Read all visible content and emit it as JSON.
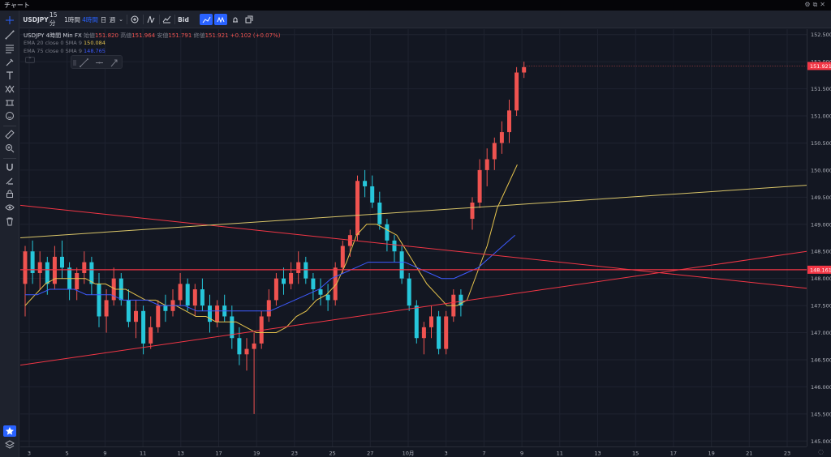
{
  "window": {
    "title": "チャート",
    "controls": [
      "⚙",
      "⧉",
      "✕"
    ]
  },
  "toolbar": {
    "symbol": "USDJPY",
    "timeframes": [
      "15分",
      "1時間",
      "4時間",
      "日",
      "週"
    ],
    "active_timeframe": "4時間",
    "price_side": "Bid"
  },
  "legend": {
    "line1": {
      "symbol": "USDJPY",
      "interval": "4時間",
      "source": "Min FX",
      "open_label": "始値",
      "open": "151.820",
      "high_label": "高値",
      "high": "151.964",
      "low_label": "安値",
      "low": "151.791",
      "close_label": "終値",
      "close": "151.921",
      "change": "+0.102 (+0.07%)"
    },
    "ema20": {
      "label": "EMA 20 close 0 SMA 9",
      "value": "150.084",
      "color": "#e5c34d"
    },
    "ema75": {
      "label": "EMA 75 close 0 SMA 9",
      "value": "148.765",
      "color": "#3d5afe"
    }
  },
  "colors": {
    "up": "#ef5350",
    "down": "#26c6da",
    "trend": "#f23645",
    "trend_yellow": "#d9c569",
    "bg": "#131722"
  },
  "price_axis": {
    "labels": [
      "152.500",
      "152.000",
      "151.500",
      "151.000",
      "150.500",
      "150.000",
      "149.500",
      "149.000",
      "148.500",
      "148.000",
      "147.500",
      "147.000",
      "146.500",
      "146.000",
      "145.500",
      "145.000"
    ],
    "current_price": "151.921",
    "horizontal_level": "148.161"
  },
  "time_axis": {
    "labels": [
      "3",
      "5",
      "9",
      "11",
      "13",
      "17",
      "19",
      "23",
      "25",
      "27",
      "10月",
      "3",
      "7",
      "9",
      "11",
      "13",
      "15",
      "17",
      "19",
      "21",
      "23"
    ]
  },
  "chart_data": {
    "type": "candlestick",
    "ylim": [
      144.9,
      152.6
    ],
    "candles": [
      [
        147.9,
        148.6,
        147.3,
        148.5
      ],
      [
        148.5,
        148.7,
        147.9,
        148.1
      ],
      [
        148.1,
        148.5,
        147.8,
        148.3
      ],
      [
        148.3,
        148.4,
        147.7,
        147.9
      ],
      [
        147.9,
        148.6,
        147.8,
        148.4
      ],
      [
        148.4,
        148.7,
        148.0,
        148.2
      ],
      [
        148.2,
        148.3,
        147.6,
        147.8
      ],
      [
        147.8,
        148.2,
        147.6,
        148.1
      ],
      [
        148.1,
        148.5,
        147.9,
        148.3
      ],
      [
        148.3,
        148.4,
        147.7,
        147.9
      ],
      [
        147.9,
        148.1,
        147.1,
        147.3
      ],
      [
        147.3,
        147.8,
        147.0,
        147.6
      ],
      [
        147.6,
        148.2,
        147.5,
        148.0
      ],
      [
        148.0,
        148.1,
        147.5,
        147.6
      ],
      [
        147.6,
        147.8,
        147.1,
        147.2
      ],
      [
        147.2,
        147.6,
        146.9,
        147.4
      ],
      [
        147.4,
        147.5,
        146.6,
        146.8
      ],
      [
        146.8,
        147.3,
        146.7,
        147.1
      ],
      [
        147.1,
        147.6,
        147.0,
        147.5
      ],
      [
        147.5,
        147.7,
        147.2,
        147.4
      ],
      [
        147.4,
        147.8,
        147.3,
        147.6
      ],
      [
        147.6,
        148.1,
        147.5,
        147.9
      ],
      [
        147.9,
        148.0,
        147.4,
        147.5
      ],
      [
        147.5,
        147.9,
        147.3,
        147.8
      ],
      [
        147.8,
        148.0,
        147.4,
        147.5
      ],
      [
        147.5,
        147.7,
        147.0,
        147.2
      ],
      [
        147.2,
        147.6,
        147.1,
        147.5
      ],
      [
        147.5,
        147.7,
        147.2,
        147.3
      ],
      [
        147.3,
        147.5,
        146.7,
        146.9
      ],
      [
        146.9,
        147.1,
        146.4,
        146.6
      ],
      [
        146.6,
        146.9,
        146.3,
        146.7
      ],
      [
        146.7,
        147.0,
        145.5,
        146.8
      ],
      [
        146.8,
        147.4,
        146.7,
        147.3
      ],
      [
        147.3,
        147.8,
        147.2,
        147.6
      ],
      [
        147.6,
        148.1,
        147.5,
        148.0
      ],
      [
        148.0,
        148.2,
        147.7,
        147.9
      ],
      [
        147.9,
        148.3,
        147.8,
        148.1
      ],
      [
        148.1,
        148.5,
        147.9,
        148.3
      ],
      [
        148.3,
        148.4,
        147.9,
        148.0
      ],
      [
        148.0,
        148.1,
        147.6,
        147.8
      ],
      [
        147.8,
        148.0,
        147.5,
        147.7
      ],
      [
        147.7,
        147.9,
        147.4,
        147.6
      ],
      [
        147.6,
        148.3,
        147.5,
        148.2
      ],
      [
        148.2,
        148.7,
        148.1,
        148.6
      ],
      [
        148.6,
        148.9,
        148.4,
        148.8
      ],
      [
        148.8,
        149.9,
        148.7,
        149.8
      ],
      [
        149.8,
        150.0,
        149.5,
        149.7
      ],
      [
        149.7,
        149.9,
        149.3,
        149.4
      ],
      [
        149.4,
        149.6,
        148.9,
        149.0
      ],
      [
        149.0,
        149.1,
        148.5,
        148.7
      ],
      [
        148.7,
        148.8,
        148.3,
        148.5
      ],
      [
        148.5,
        148.6,
        147.9,
        148.0
      ],
      [
        148.0,
        148.1,
        147.4,
        147.5
      ],
      [
        147.5,
        147.6,
        146.8,
        146.9
      ],
      [
        146.9,
        147.2,
        146.6,
        147.1
      ],
      [
        147.1,
        147.5,
        146.9,
        147.3
      ],
      [
        147.3,
        147.4,
        146.6,
        146.7
      ],
      [
        146.7,
        147.4,
        146.6,
        147.3
      ],
      [
        147.3,
        147.8,
        147.2,
        147.7
      ],
      [
        147.7,
        147.8,
        147.3,
        147.5
      ],
      [
        149.1,
        149.5,
        148.9,
        149.4
      ],
      [
        149.4,
        150.2,
        149.3,
        150.0
      ],
      [
        150.0,
        150.4,
        149.7,
        150.2
      ],
      [
        150.2,
        150.6,
        150.0,
        150.5
      ],
      [
        150.5,
        150.9,
        150.3,
        150.7
      ],
      [
        150.7,
        151.3,
        150.5,
        151.1
      ],
      [
        151.1,
        151.9,
        151.0,
        151.8
      ],
      [
        151.8,
        152.0,
        151.7,
        151.9
      ]
    ],
    "ema20": [
      147.5,
      147.7,
      147.9,
      148.0,
      148.0,
      148.0,
      148.0,
      147.9,
      147.9,
      147.8,
      147.8,
      147.7,
      147.6,
      147.6,
      147.5,
      147.5,
      147.4,
      147.3,
      147.3,
      147.2,
      147.2,
      147.2,
      147.1,
      147.0,
      147.0,
      147.0,
      147.1,
      147.3,
      147.4,
      147.6,
      147.7,
      147.9,
      148.3,
      148.8,
      149.0,
      149.0,
      148.9,
      148.8,
      148.5,
      148.2,
      147.9,
      147.7,
      147.5,
      147.5,
      147.6,
      148.1,
      148.6,
      149.3,
      149.7,
      150.1
    ],
    "ema75": [
      147.7,
      147.7,
      147.8,
      147.8,
      147.8,
      147.7,
      147.7,
      147.7,
      147.6,
      147.6,
      147.6,
      147.5,
      147.5,
      147.5,
      147.4,
      147.4,
      147.4,
      147.4,
      147.4,
      147.4,
      147.4,
      147.5,
      147.6,
      147.7,
      147.8,
      148.0,
      148.1,
      148.2,
      148.3,
      148.3,
      148.3,
      148.3,
      148.2,
      148.1,
      148.0,
      148.0,
      148.1,
      148.2,
      148.4,
      148.6,
      148.8
    ]
  }
}
